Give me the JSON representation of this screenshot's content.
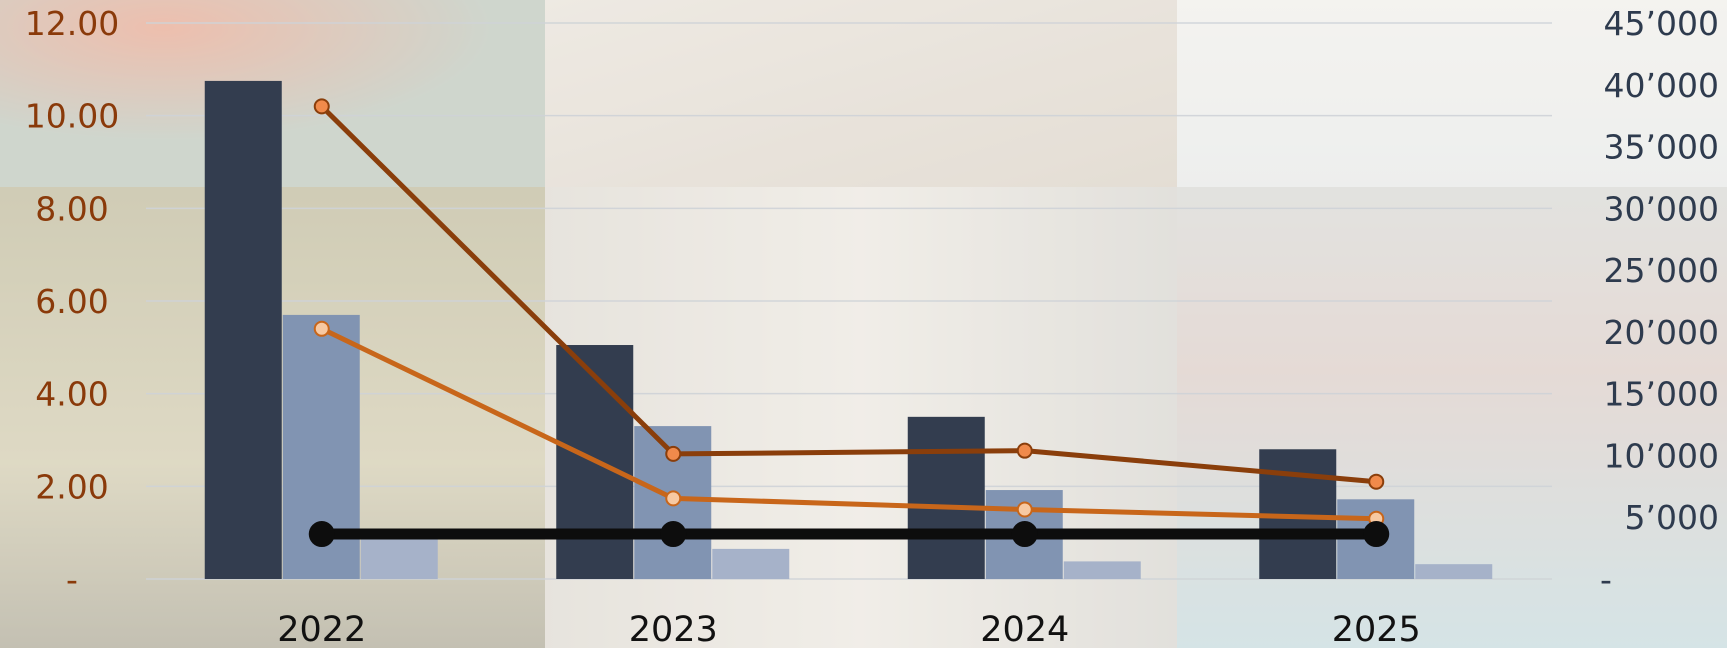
{
  "chart_data": {
    "type": "bar",
    "title": "",
    "xlabel": "",
    "ylabel": "",
    "categories": [
      "2022",
      "2023",
      "2024",
      "2025"
    ],
    "left_axis": {
      "range": [
        0,
        12
      ],
      "tick_labels": [
        "-",
        "2.00",
        "4.00",
        "6.00",
        "8.00",
        "10.00",
        "12.00"
      ],
      "tick_values": [
        0,
        2,
        4,
        6,
        8,
        10,
        12
      ]
    },
    "right_axis": {
      "range": [
        0,
        45000
      ],
      "tick_labels": [
        "-",
        "5’000",
        "10’000",
        "15’000",
        "20’000",
        "25’000",
        "30’000",
        "35’000",
        "40’000",
        "45’000"
      ],
      "tick_values": [
        0,
        5000,
        10000,
        15000,
        20000,
        25000,
        30000,
        35000,
        40000,
        45000
      ]
    },
    "grid": true,
    "legend": "none",
    "bar_series": [
      {
        "axis": "left",
        "color": "#333d4f",
        "values": [
          10.75,
          5.05,
          3.5,
          2.8
        ]
      },
      {
        "axis": "left",
        "color": "#8194b2",
        "values": [
          5.7,
          3.3,
          1.92,
          1.72
        ]
      },
      {
        "axis": "left",
        "color": "#a6b2c9",
        "values": [
          0.88,
          0.65,
          0.38,
          0.32
        ]
      }
    ],
    "line_series": [
      {
        "axis": "left",
        "color": "#8a3e0b",
        "marker_fill": "#f08a4b",
        "values": [
          10.2,
          2.7,
          2.77,
          2.1
        ]
      },
      {
        "axis": "left",
        "color": "#c8661a",
        "marker_fill": "#f7c9a2",
        "values": [
          5.4,
          1.74,
          1.5,
          1.3
        ]
      },
      {
        "axis": "left",
        "color": "#0d0d0d",
        "marker_fill": "#0d0d0d",
        "values": [
          0.97,
          0.97,
          0.97,
          0.97
        ]
      }
    ],
    "colors": {
      "left_tick_text": "#8a3a0a",
      "right_tick_text": "#2e3b4e",
      "x_tick_text": "#111111",
      "grid": "#cfd3d8"
    }
  }
}
